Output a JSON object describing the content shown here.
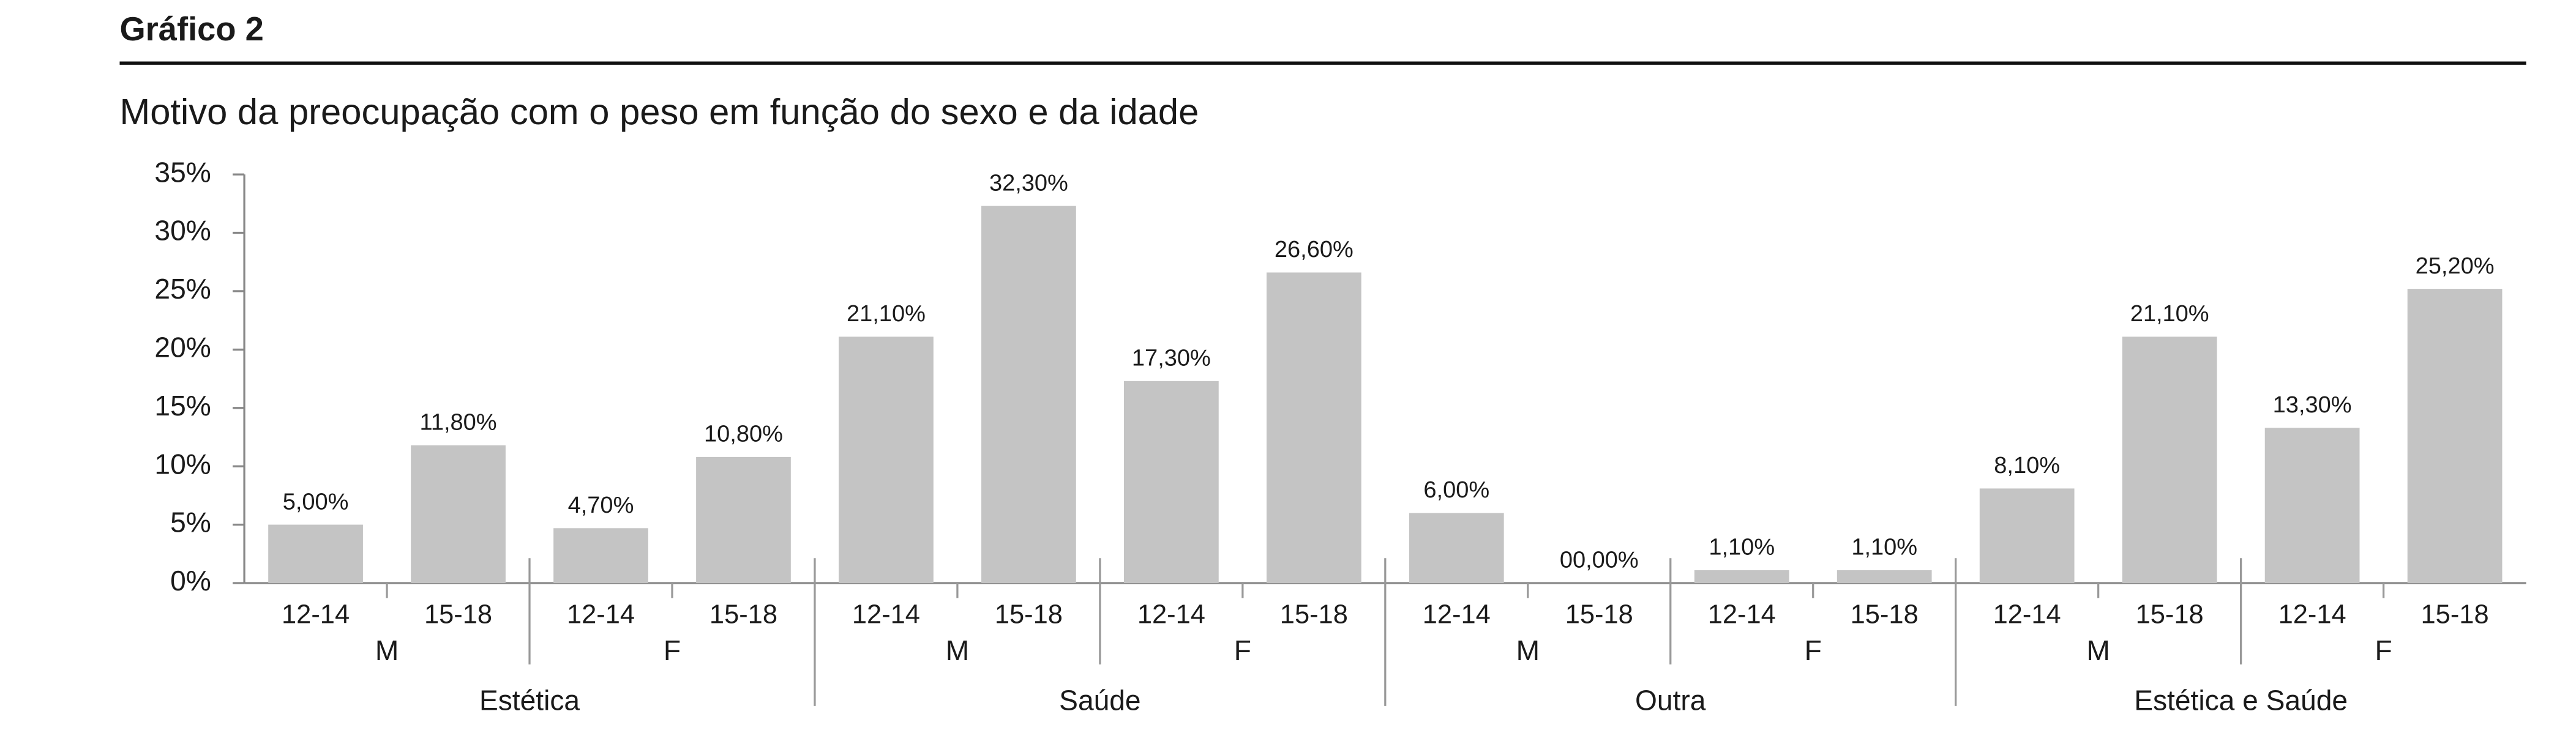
{
  "chart_data": {
    "type": "bar",
    "title": "Gráfico 2",
    "subtitle": "Motivo da preocupação com o peso em função do sexo e da idade",
    "categories": [
      "12-14",
      "15-18",
      "12-14",
      "15-18",
      "12-14",
      "15-18",
      "12-14",
      "15-18",
      "12-14",
      "15-18",
      "12-14",
      "15-18",
      "12-14",
      "15-18",
      "12-14",
      "15-18"
    ],
    "sex_groups": [
      "M",
      "F",
      "M",
      "F",
      "M",
      "F",
      "M",
      "F"
    ],
    "groups": [
      "Estética",
      "Saúde",
      "Outra",
      "Estética e Saúde"
    ],
    "values": [
      5.0,
      11.8,
      4.7,
      10.8,
      21.1,
      32.3,
      17.3,
      26.6,
      6.0,
      0.0,
      1.1,
      1.1,
      8.1,
      21.1,
      13.3,
      25.2
    ],
    "value_labels": [
      "5,00%",
      "11,80%",
      "4,70%",
      "10,80%",
      "21,10%",
      "32,30%",
      "17,30%",
      "26,60%",
      "6,00%",
      "00,00%",
      "1,10%",
      "1,10%",
      "8,10%",
      "21,10%",
      "13,30%",
      "25,20%"
    ],
    "color": "#c4c4c4",
    "ylim": [
      0,
      35
    ],
    "yticks": [
      {
        "value": 0,
        "label": "0%"
      },
      {
        "value": 5,
        "label": "5%"
      },
      {
        "value": 10,
        "label": "10%"
      },
      {
        "value": 15,
        "label": "15%"
      },
      {
        "value": 20,
        "label": "20%"
      },
      {
        "value": 25,
        "label": "25%"
      },
      {
        "value": 30,
        "label": "30%"
      },
      {
        "value": 35,
        "label": "35%"
      }
    ]
  }
}
